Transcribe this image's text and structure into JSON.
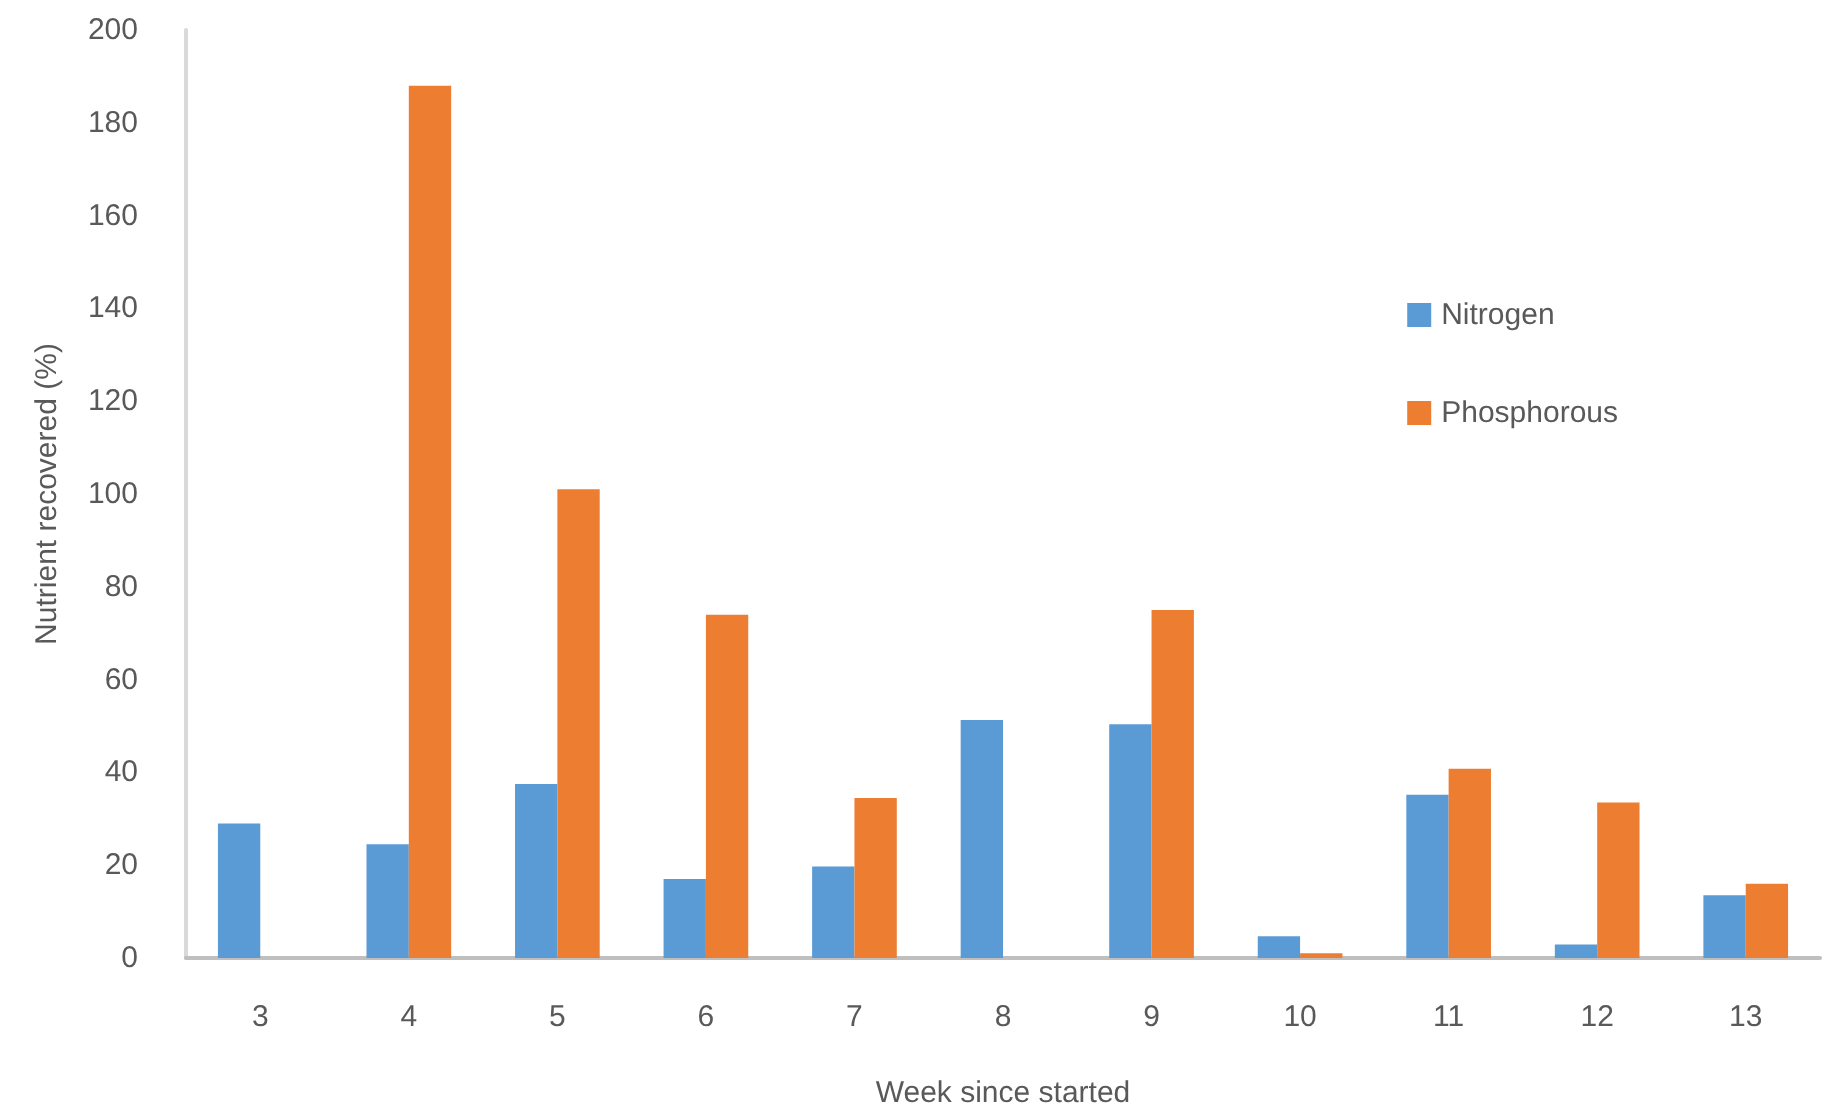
{
  "chart_data": {
    "type": "bar",
    "xlabel": "Week since started",
    "ylabel": "Nutrient recovered (%)",
    "categories": [
      "3",
      "4",
      "5",
      "6",
      "7",
      "8",
      "9",
      "10",
      "11",
      "12",
      "13"
    ],
    "series": [
      {
        "name": "Nitrogen",
        "color": "#5b9bd5",
        "values": [
          29,
          24.5,
          37.5,
          17,
          19.7,
          51.3,
          50.4,
          4.7,
          35.2,
          2.9,
          13.5
        ]
      },
      {
        "name": "Phosphorous",
        "color": "#ed7d31",
        "values": [
          null,
          188,
          101,
          74,
          34.5,
          null,
          75,
          1,
          40.8,
          33.5,
          16
        ]
      }
    ],
    "ylim": [
      0,
      200
    ],
    "yticks": [
      0,
      20,
      40,
      60,
      80,
      100,
      120,
      140,
      160,
      180,
      200
    ],
    "grid": false,
    "legend": "right"
  }
}
